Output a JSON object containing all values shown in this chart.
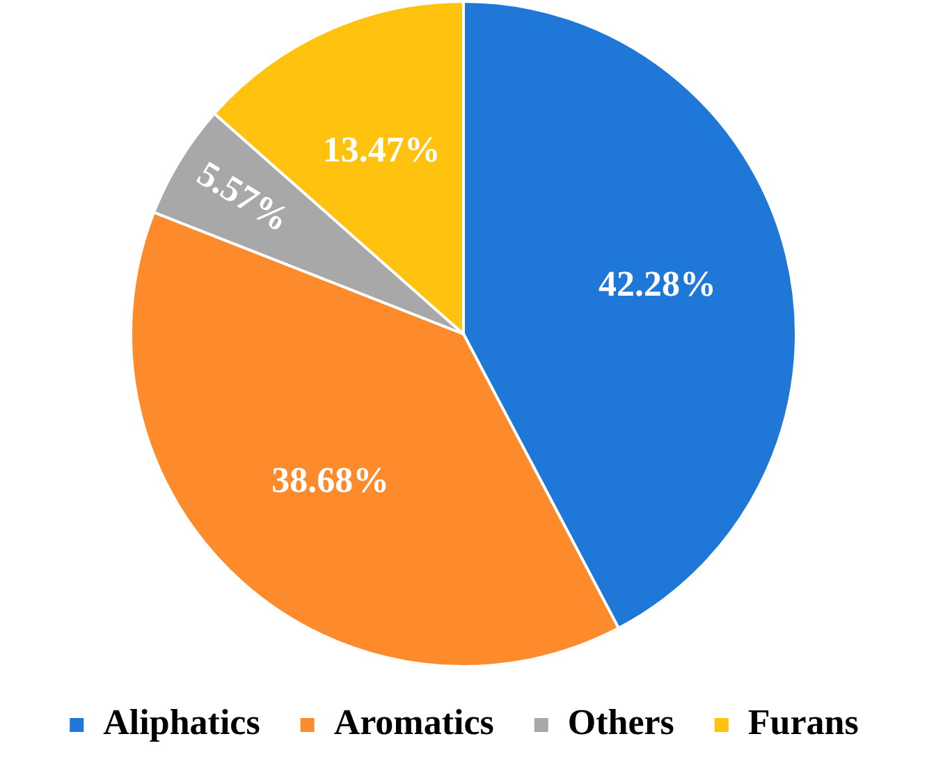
{
  "chart_data": {
    "type": "pie",
    "categories": [
      "Aliphatics",
      "Aromatics",
      "Others",
      "Furans"
    ],
    "values": [
      42.28,
      38.68,
      5.57,
      13.47
    ],
    "colors": [
      "#1f78d8",
      "#fd8b2b",
      "#a8a8a8",
      "#ffc20e"
    ],
    "value_labels": [
      "42.28%",
      "38.68%",
      "5.57%",
      "13.47%"
    ],
    "legend": "bottom"
  }
}
